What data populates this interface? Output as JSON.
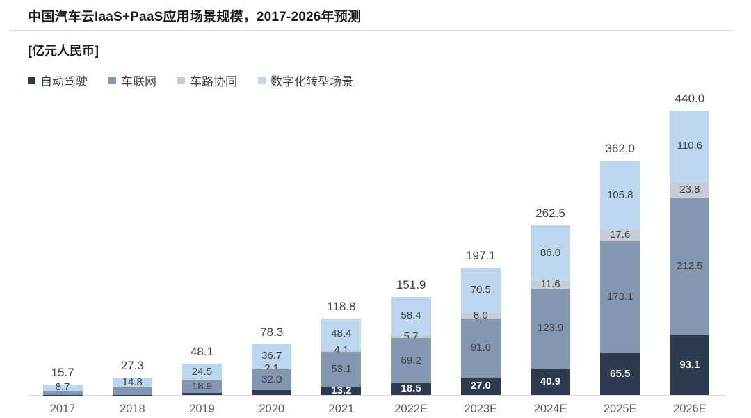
{
  "title": "中国汽车云IaaS+PaaS应用场景规模，2017-2026年预测",
  "unit_label": "[亿元人民币]",
  "colors": {
    "autonomous_driving": "#2e3b4f",
    "telematics": "#8496b0",
    "v2x": "#c5cdd7",
    "digital_transformation": "#bdd7ee",
    "axis_line": "#d9d9d9",
    "segment_label": "#404040",
    "segment_label_on_dark": "#ffffff",
    "x_axis_label": "#595959"
  },
  "chart_data": {
    "type": "bar",
    "stacked": true,
    "title": "中国汽车云IaaS+PaaS应用场景规模，2017-2026年预测",
    "ylabel": "亿元人民币",
    "ylim": [
      0,
      440
    ],
    "grid": false,
    "legend_position": "top-left",
    "categories": [
      "2017",
      "2018",
      "2019",
      "2020",
      "2021",
      "2022E",
      "2023E",
      "2024E",
      "2025E",
      "2026E"
    ],
    "totals": [
      15.7,
      27.3,
      48.1,
      78.3,
      118.8,
      151.9,
      197.1,
      262.5,
      362.0,
      440.0
    ],
    "series": [
      {
        "name": "自动驾驶",
        "key": "autonomous-driving",
        "color": "#2e3b4f",
        "label_color": "light",
        "values": [
          0.2,
          0.4,
          3.5,
          7.5,
          13.2,
          18.5,
          27.0,
          40.9,
          65.5,
          93.1
        ],
        "labels_visible": [
          false,
          false,
          false,
          false,
          true,
          true,
          true,
          true,
          true,
          true
        ]
      },
      {
        "name": "车联网",
        "key": "telematics",
        "color": "#8496b0",
        "label_color": "dark",
        "values": [
          6.5,
          11.5,
          18.9,
          32.0,
          53.1,
          69.2,
          91.6,
          123.9,
          173.1,
          212.5
        ],
        "labels_visible": [
          false,
          false,
          true,
          true,
          true,
          true,
          true,
          true,
          true,
          true
        ]
      },
      {
        "name": "车路协同",
        "key": "v2x",
        "color": "#c5cdd7",
        "label_color": "dark",
        "values": [
          0.3,
          0.6,
          1.2,
          2.1,
          4.1,
          5.7,
          8.0,
          11.6,
          17.6,
          23.8
        ],
        "labels_visible": [
          false,
          false,
          false,
          true,
          true,
          true,
          true,
          true,
          true,
          true
        ]
      },
      {
        "name": "数字化转型场景",
        "key": "digital-transformation",
        "color": "#bdd7ee",
        "label_color": "dark",
        "values": [
          8.7,
          14.8,
          24.5,
          36.7,
          48.4,
          58.4,
          70.5,
          86.0,
          105.8,
          110.6
        ],
        "labels_visible": [
          true,
          true,
          true,
          true,
          true,
          true,
          true,
          true,
          true,
          true
        ]
      }
    ]
  }
}
